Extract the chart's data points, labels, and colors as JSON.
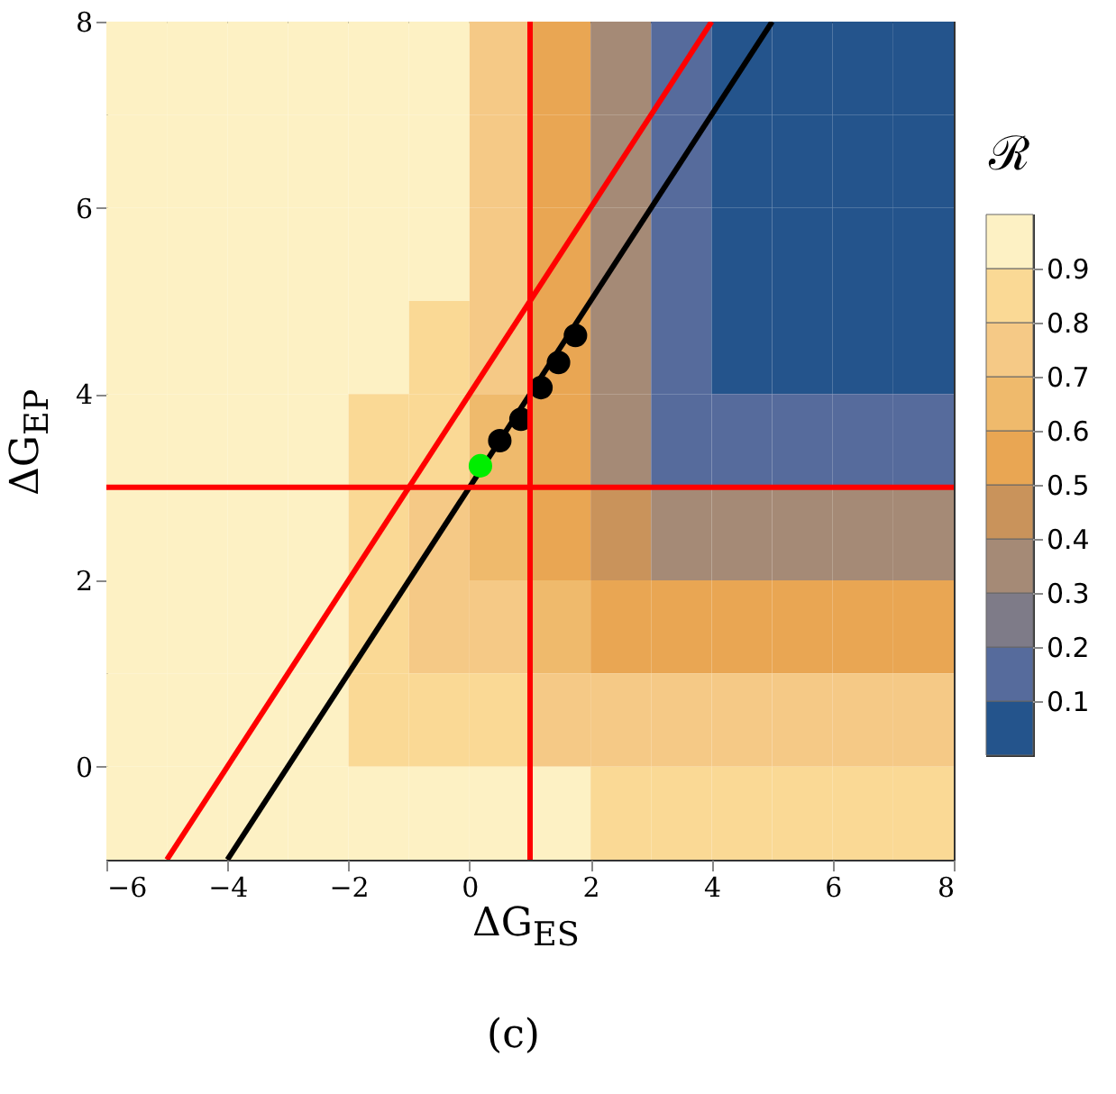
{
  "chart_data": {
    "type": "heatmap",
    "xlabel": "ΔG$_{ES}$",
    "ylabel": "ΔG$_{EP}$",
    "clabel": "ℛ",
    "annotations": [
      "(c)"
    ],
    "x": [
      -5.5,
      -4.5,
      -3.5,
      -2.5,
      -1.5,
      -0.5,
      0.5,
      1.5,
      2.5,
      3.5,
      4.5,
      5.5,
      6.5,
      7.5
    ],
    "y": [
      7.5,
      6.5,
      5.5,
      4.5,
      3.5,
      2.5,
      1.5,
      0.5,
      -0.5
    ],
    "cells": [
      [
        0.95,
        0.95,
        0.95,
        0.95,
        0.95,
        0.95,
        0.75,
        0.55,
        0.35,
        0.15,
        0.05,
        0.05,
        0.05,
        0.05
      ],
      [
        0.95,
        0.95,
        0.95,
        0.95,
        0.95,
        0.95,
        0.75,
        0.55,
        0.35,
        0.15,
        0.05,
        0.05,
        0.05,
        0.05
      ],
      [
        0.95,
        0.95,
        0.95,
        0.95,
        0.95,
        0.95,
        0.75,
        0.55,
        0.35,
        0.15,
        0.05,
        0.05,
        0.05,
        0.05
      ],
      [
        0.95,
        0.95,
        0.95,
        0.95,
        0.95,
        0.85,
        0.75,
        0.55,
        0.35,
        0.15,
        0.05,
        0.05,
        0.05,
        0.05
      ],
      [
        0.95,
        0.95,
        0.95,
        0.95,
        0.85,
        0.85,
        0.65,
        0.55,
        0.35,
        0.15,
        0.15,
        0.15,
        0.15,
        0.15
      ],
      [
        0.95,
        0.95,
        0.95,
        0.95,
        0.85,
        0.75,
        0.65,
        0.55,
        0.45,
        0.35,
        0.35,
        0.35,
        0.35,
        0.35
      ],
      [
        0.95,
        0.95,
        0.95,
        0.95,
        0.85,
        0.75,
        0.75,
        0.65,
        0.55,
        0.55,
        0.55,
        0.55,
        0.55,
        0.55
      ],
      [
        0.95,
        0.95,
        0.95,
        0.95,
        0.85,
        0.85,
        0.85,
        0.75,
        0.75,
        0.75,
        0.75,
        0.75,
        0.75,
        0.75
      ],
      [
        0.95,
        0.95,
        0.95,
        0.95,
        0.95,
        0.95,
        0.95,
        0.95,
        0.85,
        0.85,
        0.85,
        0.85,
        0.85,
        0.85
      ]
    ],
    "clim": [
      0,
      1
    ],
    "cticks": [
      0.1,
      0.2,
      0.3,
      0.4,
      0.5,
      0.6,
      0.7,
      0.8,
      0.9
    ],
    "colors": [
      "#24548c",
      "#566b9c",
      "#7e7b88",
      "#a58a76",
      "#c9935b",
      "#e9a653",
      "#efba6c",
      "#f5c986",
      "#fad995",
      "#fdf1c4"
    ],
    "xlim": [
      -6,
      8
    ],
    "xticks": [
      -6,
      -4,
      -2,
      0,
      2,
      4,
      6,
      8
    ],
    "ylim": [
      -1,
      8
    ],
    "yticks": [
      0,
      2,
      4,
      6,
      8
    ],
    "series": [
      {
        "type": "line",
        "color": "#ff0000",
        "x": [
          -5,
          4
        ],
        "values": [
          -1,
          8
        ]
      },
      {
        "type": "line",
        "color": "#000000",
        "x": [
          -4,
          5
        ],
        "values": [
          -1,
          8
        ]
      },
      {
        "type": "scatter",
        "color": "#000000",
        "x": [
          0.5,
          0.85,
          1.18,
          1.47,
          1.75
        ],
        "values": [
          3.5,
          3.73,
          4.07,
          4.34,
          4.63
        ]
      },
      {
        "type": "scatter",
        "color": "#00ee00",
        "x": [
          0.18
        ],
        "values": [
          3.23
        ]
      }
    ],
    "ref_lines": [
      {
        "axis": "x",
        "value": 1,
        "color": "#ff0000"
      },
      {
        "axis": "y",
        "value": 3,
        "color": "#ff0000"
      }
    ]
  }
}
